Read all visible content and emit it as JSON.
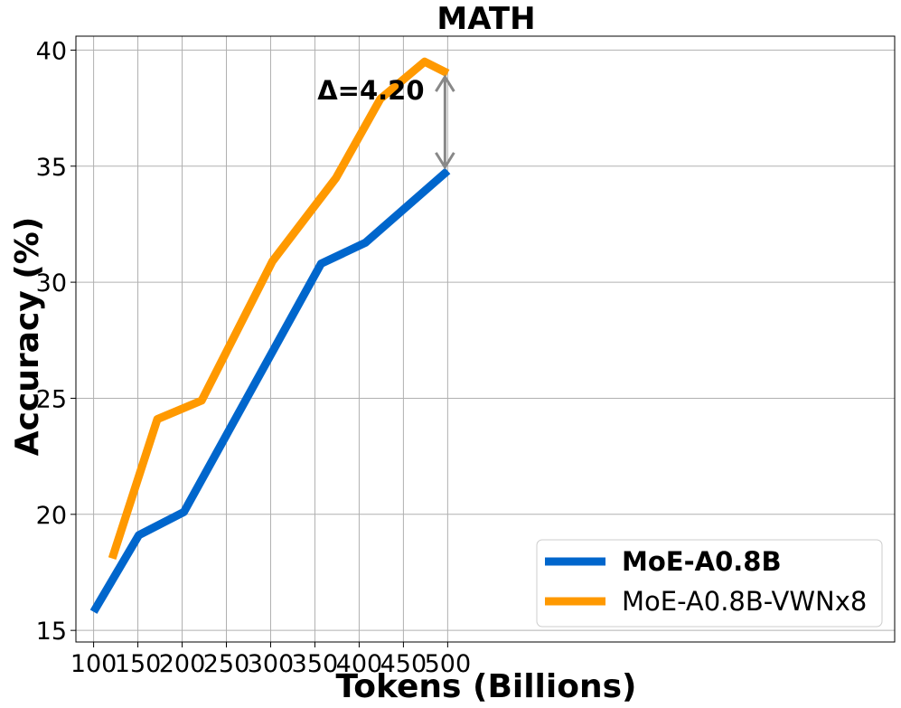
{
  "chart_data": {
    "type": "line",
    "title": "MATH",
    "xlabel": "Tokens (Billions)",
    "ylabel": "Accuracy (%)",
    "xlim": [
      80,
      1005
    ],
    "ylim": [
      14.5,
      40.6
    ],
    "xticks": [
      100,
      150,
      200,
      250,
      300,
      350,
      400,
      450,
      500
    ],
    "yticks": [
      15,
      20,
      25,
      30,
      35,
      40
    ],
    "grid": true,
    "legend_position": "lower-right",
    "series": [
      {
        "name": "MoE-A0.8B",
        "color": "#0066cc",
        "legend_bold": true,
        "x": [
          100,
          151,
          202,
          357,
          407,
          500
        ],
        "y": [
          15.8,
          19.1,
          20.1,
          30.8,
          31.7,
          34.8
        ]
      },
      {
        "name": "MoE-A0.8B-VWNx8",
        "color": "#ff9900",
        "legend_bold": false,
        "x": [
          121,
          172,
          222,
          302,
          374,
          424,
          474,
          500
        ],
        "y": [
          18.1,
          24.1,
          24.9,
          30.9,
          34.5,
          37.9,
          39.5,
          39.0
        ]
      }
    ],
    "annotation": {
      "text": "Δ=4.20",
      "x": 500,
      "y_from": 34.8,
      "y_to": 39.0,
      "arrow_color": "#888888"
    }
  }
}
